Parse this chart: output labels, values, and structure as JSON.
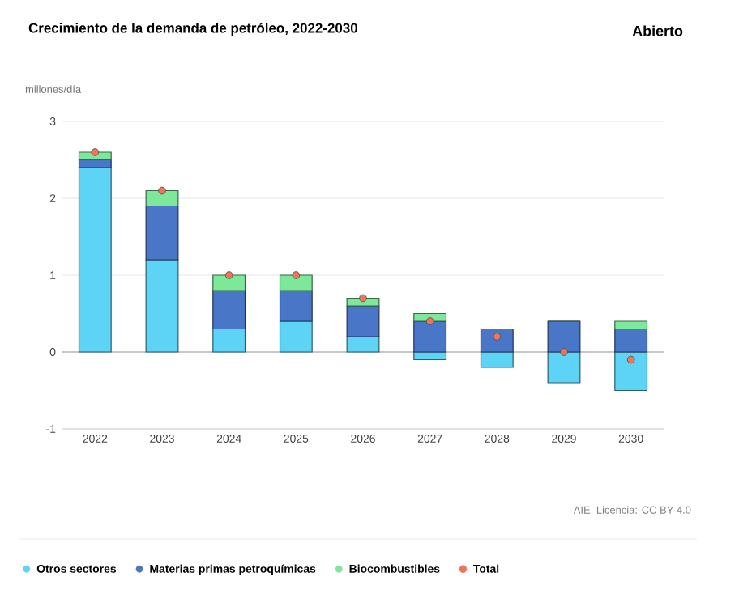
{
  "chart_data": {
    "type": "bar",
    "stacked": true,
    "title": "Crecimiento de la demanda de petróleo, 2022-2030",
    "ylabel": "millones/día",
    "categories": [
      "2022",
      "2023",
      "2024",
      "2025",
      "2026",
      "2027",
      "2028",
      "2029",
      "2030"
    ],
    "series": [
      {
        "name": "Otros sectores",
        "color": "#5dd3f5",
        "values": [
          2.4,
          1.2,
          0.3,
          0.4,
          0.2,
          -0.1,
          -0.2,
          -0.4,
          -0.5
        ]
      },
      {
        "name": "Materias primas petroquímicas",
        "color": "#4a76c8",
        "values": [
          0.1,
          0.7,
          0.5,
          0.4,
          0.4,
          0.4,
          0.3,
          0.4,
          0.3
        ]
      },
      {
        "name": "Biocombustibles",
        "color": "#7ee89a",
        "values": [
          0.1,
          0.2,
          0.2,
          0.2,
          0.1,
          0.1,
          0.0,
          0.0,
          0.1
        ]
      },
      {
        "name": "Total",
        "type": "scatter",
        "marker": "circle",
        "color": "#f0735a",
        "values": [
          2.6,
          2.1,
          1.0,
          1.0,
          0.7,
          0.4,
          0.2,
          0.0,
          -0.1
        ]
      }
    ],
    "ylim": [
      -1,
      3
    ],
    "yticks": [
      -1,
      0,
      1,
      2,
      3
    ],
    "grid": "y",
    "legend": "bottom",
    "annotations": [
      "Abierto",
      "AIE. Licencia: CC BY 4.0"
    ]
  }
}
